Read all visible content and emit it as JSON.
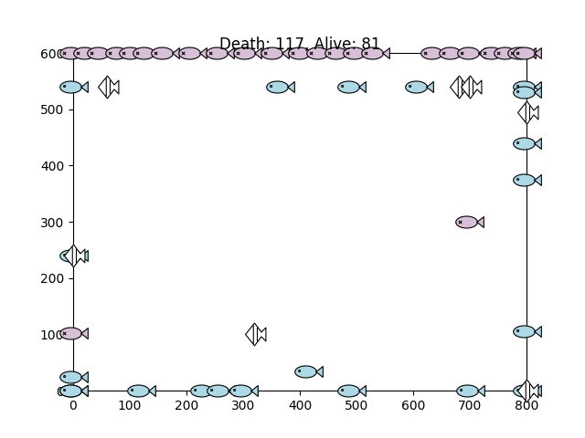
{
  "chart_data": {
    "type": "scatter",
    "title": "Death: 117, Alive: 81",
    "xlim": [
      0,
      800
    ],
    "ylim": [
      0,
      600
    ],
    "xticks": [
      0,
      100,
      200,
      300,
      400,
      500,
      600,
      700,
      800
    ],
    "yticks": [
      0,
      100,
      200,
      300,
      400,
      500,
      600
    ],
    "grid": false,
    "series": [
      {
        "color": "#d8bfd8",
        "marker": "fish_dead",
        "x": [
          0,
          24,
          48,
          81,
          105,
          129,
          161,
          210,
          258,
          306,
          355,
          403,
          435,
          468,
          500,
          532,
          637,
          669,
          702,
          742,
          766,
          790,
          800,
          0,
          698,
          0
        ],
        "y": [
          600,
          600,
          600,
          600,
          600,
          600,
          600,
          600,
          600,
          600,
          600,
          600,
          600,
          600,
          600,
          600,
          600,
          600,
          600,
          600,
          600,
          600,
          600,
          102,
          300,
          0
        ]
      },
      {
        "color": "#add8e6",
        "marker": "fish",
        "x": [
          0,
          365,
          490,
          610,
          800,
          800,
          800,
          800,
          0,
          800,
          0,
          0,
          120,
          230,
          260,
          300,
          415,
          490,
          700,
          800
        ],
        "y": [
          540,
          540,
          540,
          540,
          540,
          530,
          440,
          375,
          240,
          105,
          25,
          0,
          0,
          0,
          0,
          0,
          35,
          0,
          0,
          0
        ]
      },
      {
        "color": "#ffffff",
        "marker": "angelfish",
        "x": [
          60,
          680,
          700,
          800,
          320,
          800,
          0
        ],
        "y": [
          540,
          540,
          540,
          495,
          100,
          0,
          240
        ]
      }
    ]
  }
}
